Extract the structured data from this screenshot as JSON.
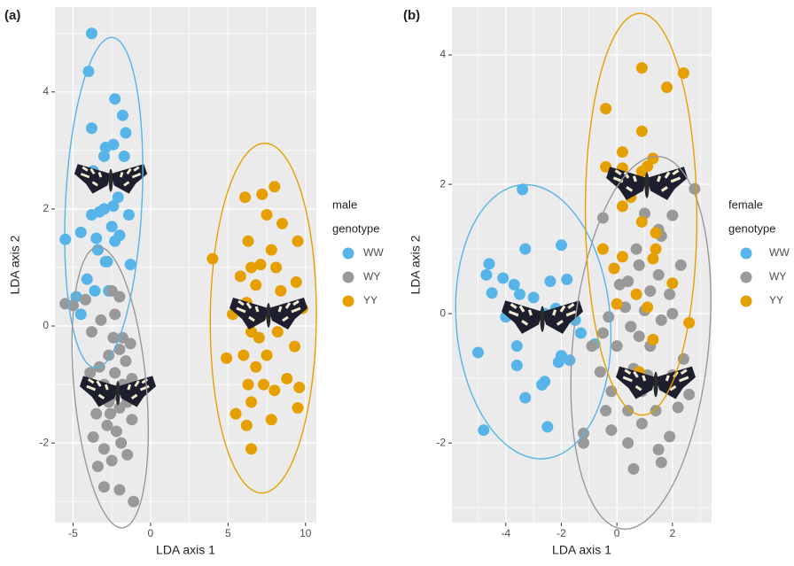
{
  "chart_data": [
    {
      "type": "scatter",
      "panel_label": "(a)",
      "x_label": "LDA axis 1",
      "y_label": "LDA axis 2",
      "legend_title": [
        "male",
        "genotype"
      ],
      "xlim": [
        -6.17,
        10.7
      ],
      "ylim": [
        -3.36,
        5.45
      ],
      "xticks": [
        -5,
        0,
        5,
        10
      ],
      "yticks": [
        -2,
        0,
        2,
        4
      ],
      "grid": true,
      "series": [
        {
          "name": "WW",
          "color": "#56B4E9",
          "x": [
            -3.8,
            -4.0,
            -2.3,
            -1.8,
            -3.8,
            -1.6,
            -2.9,
            -2.4,
            -3.0,
            -1.7,
            -3.7,
            -3.3,
            -2.0,
            -5.5,
            -4.5,
            -3.8,
            -2.4,
            -3.3,
            -1.4,
            -2.0,
            -3.5,
            -3.4,
            -2.3,
            -2.9,
            -2.8,
            -1.3,
            -4.1,
            -4.8,
            -4.5,
            -3.0,
            -2.5,
            -2.1,
            -3.6,
            -2.7
          ],
          "values": [
            5.0,
            4.35,
            3.88,
            3.6,
            3.38,
            3.3,
            3.05,
            3.1,
            2.9,
            2.9,
            2.65,
            2.55,
            2.5,
            1.48,
            1.6,
            1.9,
            2.05,
            1.95,
            1.9,
            1.55,
            1.5,
            1.3,
            1.45,
            1.1,
            1.1,
            1.05,
            0.8,
            0.5,
            0.2,
            2.0,
            1.7,
            2.2,
            0.6,
            0.6
          ]
        },
        {
          "name": "WY",
          "color": "#999999",
          "x": [
            -5.5,
            -5.0,
            -4.2,
            -2.5,
            -2.0,
            -3.2,
            -2.3,
            -3.8,
            -1.3,
            -2.7,
            -2.0,
            -1.6,
            -3.3,
            -2.3,
            -1.8,
            -3.9,
            -3.0,
            -2.5,
            -1.2,
            -2.7,
            -2.0,
            -3.5,
            -1.5,
            -2.8,
            -2.2,
            -1.2,
            -3.7,
            -3.0,
            -1.9,
            -2.5,
            -3.4,
            -1.5,
            -3.0,
            -2.0,
            -1.1,
            -2.6,
            -2.1,
            -3.2,
            -2.4,
            -1.8
          ],
          "values": [
            0.38,
            0.35,
            0.45,
            0.6,
            0.5,
            0.1,
            0.2,
            -0.1,
            -0.3,
            -0.5,
            -0.4,
            -0.6,
            -0.7,
            -0.8,
            -1.0,
            -0.8,
            -1.0,
            -1.2,
            -0.9,
            -1.3,
            -1.4,
            -1.5,
            -1.3,
            -1.7,
            -1.8,
            -1.6,
            -1.9,
            -2.1,
            -2.0,
            -2.3,
            -2.4,
            -2.2,
            -2.75,
            -2.8,
            -3.0,
            -1.5,
            -1.1,
            -1.2,
            -0.2,
            -0.2
          ]
        },
        {
          "name": "YY",
          "color": "#E69F00",
          "x": [
            4.0,
            6.1,
            7.2,
            8.0,
            7.5,
            8.5,
            6.3,
            9.5,
            7.8,
            5.8,
            6.5,
            7.1,
            8.1,
            6.8,
            9.4,
            8.4,
            6.2,
            7.3,
            9.8,
            5.3,
            6.5,
            7.0,
            8.2,
            6.0,
            4.9,
            7.5,
            9.3,
            6.8,
            8.8,
            6.3,
            7.3,
            8.0,
            9.6,
            5.5,
            6.5,
            7.8,
            9.5,
            6.2,
            6.5
          ],
          "values": [
            1.15,
            2.2,
            2.25,
            2.38,
            1.9,
            1.75,
            1.45,
            1.45,
            1.3,
            0.85,
            1.0,
            1.05,
            1.0,
            0.7,
            0.75,
            0.6,
            0.4,
            0.2,
            0.3,
            0.2,
            -0.1,
            -0.2,
            -0.1,
            -0.5,
            -0.55,
            -0.5,
            -0.35,
            -0.7,
            -0.9,
            -1.0,
            -1.0,
            -1.1,
            -1.05,
            -1.5,
            -1.3,
            -1.6,
            -1.4,
            -1.7,
            -2.1
          ]
        }
      ]
    },
    {
      "type": "scatter",
      "panel_label": "(b)",
      "x_label": "LDA axis 1",
      "y_label": "LDA axis 2",
      "legend_title": [
        "female",
        "genotype"
      ],
      "xlim": [
        -5.94,
        3.41
      ],
      "ylim": [
        -3.23,
        4.74
      ],
      "xticks": [
        -4,
        -2,
        0,
        2
      ],
      "yticks": [
        -2,
        0,
        2,
        4
      ],
      "grid": true,
      "series": [
        {
          "name": "WW",
          "color": "#56B4E9",
          "x": [
            -3.4,
            -2.0,
            -3.3,
            -4.6,
            -4.1,
            -3.7,
            -4.7,
            -2.4,
            -1.8,
            -4.5,
            -3.5,
            -3.0,
            -2.6,
            -2.2,
            -4.0,
            -1.5,
            -3.6,
            -0.8,
            -2.0,
            -2.1,
            -1.7,
            -3.6,
            -5.0,
            -2.6,
            -2.7,
            -3.3,
            -2.5,
            -4.8,
            -1.3
          ],
          "values": [
            1.92,
            1.06,
            1.0,
            0.77,
            0.55,
            0.45,
            0.6,
            0.5,
            0.53,
            0.32,
            0.3,
            0.25,
            0.0,
            0.08,
            -0.05,
            -0.1,
            -0.5,
            -0.47,
            -0.65,
            -0.75,
            -0.72,
            -0.8,
            -0.6,
            -1.05,
            -1.1,
            -1.3,
            -1.75,
            -1.8,
            -0.3
          ]
        },
        {
          "name": "WY",
          "color": "#999999",
          "x": [
            2.8,
            -0.5,
            1.0,
            1.5,
            2.0,
            0.7,
            1.6,
            0.1,
            0.8,
            1.5,
            2.3,
            0.4,
            1.2,
            1.9,
            0.3,
            1.0,
            -0.5,
            0.5,
            1.6,
            2.0,
            -0.9,
            0.0,
            1.2,
            2.4,
            -0.6,
            0.6,
            2.0,
            -0.2,
            0.9,
            2.6,
            -0.4,
            0.4,
            1.4,
            2.2,
            -0.2,
            0.9,
            1.9,
            -1.2,
            -1.2,
            0.4,
            1.5,
            0.6,
            1.6,
            -0.3,
            0.8,
            1.1
          ],
          "values": [
            1.93,
            1.48,
            1.55,
            1.3,
            1.52,
            1.0,
            1.2,
            0.45,
            0.75,
            0.6,
            0.75,
            0.5,
            0.35,
            0.3,
            0.1,
            0.05,
            -0.3,
            -0.2,
            -0.1,
            0.0,
            -0.5,
            -0.5,
            -0.5,
            -0.7,
            -0.9,
            -0.85,
            -0.95,
            -1.2,
            -1.2,
            -1.25,
            -1.5,
            -1.5,
            -1.5,
            -1.45,
            -1.8,
            -1.7,
            -1.9,
            -1.85,
            -2.0,
            -2.0,
            -2.1,
            -2.4,
            -2.3,
            -0.05,
            -0.35,
            -0.95
          ]
        },
        {
          "name": "YY",
          "color": "#E69F00",
          "x": [
            0.9,
            2.4,
            1.8,
            -0.4,
            0.9,
            0.2,
            1.3,
            0.2,
            -0.4,
            1.1,
            1.7,
            0.9,
            0.5,
            0.2,
            0.9,
            1.4,
            -0.5,
            1.4,
            0.2,
            1.3,
            2.0,
            0.7,
            1.1,
            0.0,
            2.6,
            0.8,
            1.3,
            -0.1
          ],
          "values": [
            3.8,
            3.72,
            3.5,
            3.17,
            2.82,
            2.5,
            2.4,
            2.25,
            2.27,
            2.28,
            2.0,
            2.2,
            1.8,
            1.66,
            1.42,
            1.25,
            1.0,
            1.0,
            0.88,
            0.85,
            0.47,
            0.3,
            0.1,
            0.15,
            -0.14,
            -0.9,
            -0.4,
            0.7
          ]
        }
      ]
    }
  ]
}
